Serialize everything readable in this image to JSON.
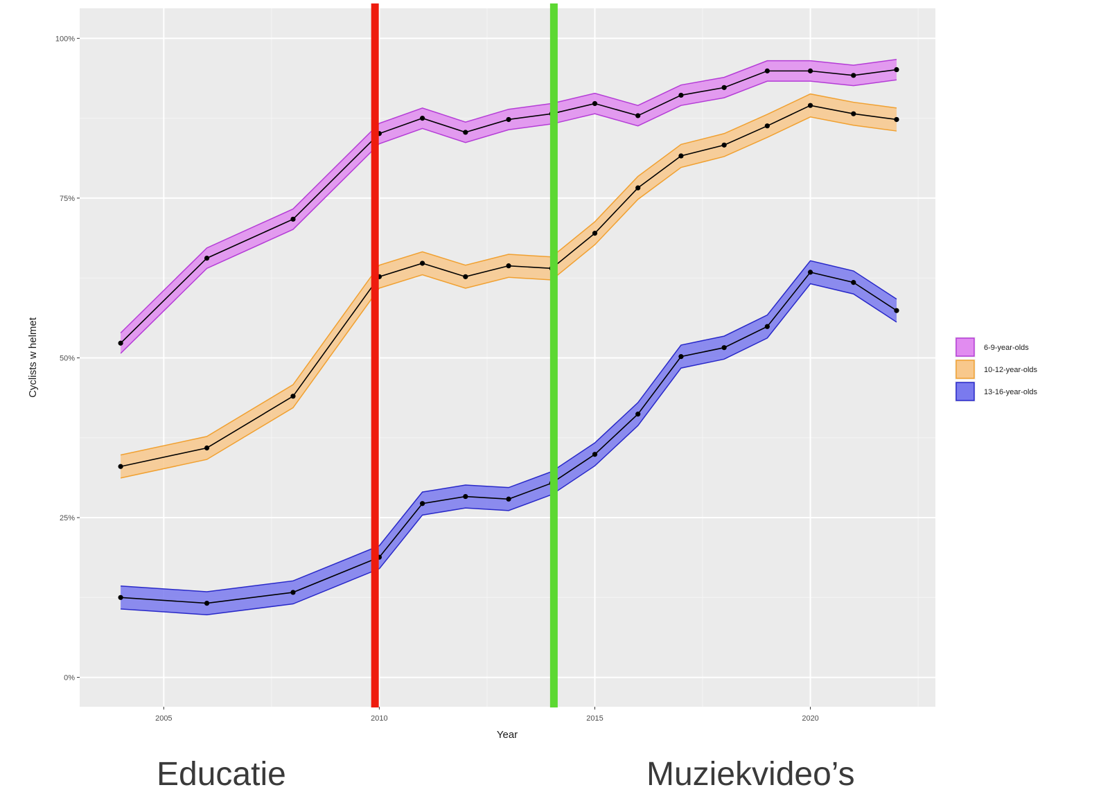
{
  "chart_data": {
    "type": "line",
    "title": "",
    "xlabel": "Year",
    "ylabel": "Cyclists w helmet",
    "x": [
      2004,
      2006,
      2008,
      2010,
      2011,
      2012,
      2013,
      2014,
      2015,
      2016,
      2017,
      2018,
      2019,
      2020,
      2021,
      2022
    ],
    "xlim": [
      2003.05,
      2022.9
    ],
    "ylim": [
      -4.6,
      104.7
    ],
    "x_ticks": [
      2005,
      2010,
      2015,
      2020
    ],
    "x_tick_labels": [
      "2005",
      "2010",
      "2015",
      "2020"
    ],
    "y_ticks": [
      0,
      25,
      50,
      75,
      100
    ],
    "y_tick_labels": [
      "0%",
      "25%",
      "50%",
      "75%",
      "100%"
    ],
    "grid": true,
    "legend_position": "right",
    "series": [
      {
        "name": "6-9-year-olds",
        "color": "#b43cd6",
        "fill": "#e18cf0",
        "values": [
          52.3,
          65.6,
          71.7,
          85.1,
          87.5,
          85.3,
          87.3,
          88.2,
          89.8,
          87.9,
          91.1,
          92.3,
          94.9,
          94.9,
          94.2,
          95.1
        ],
        "band": 1.6
      },
      {
        "name": "10-12-year-olds",
        "color": "#f0a030",
        "fill": "#f8c88c",
        "values": [
          33.0,
          35.9,
          44.0,
          62.7,
          64.8,
          62.7,
          64.4,
          64.0,
          69.5,
          76.6,
          81.6,
          83.3,
          86.3,
          89.5,
          88.2,
          87.3
        ],
        "band": 1.8
      },
      {
        "name": "13-16-year-olds",
        "color": "#2828c8",
        "fill": "#7a7aee",
        "values": [
          12.5,
          11.6,
          13.3,
          18.8,
          27.2,
          28.3,
          27.9,
          30.4,
          34.9,
          41.2,
          50.2,
          51.6,
          54.9,
          63.4,
          61.8,
          57.4
        ],
        "band": 1.8
      }
    ],
    "annotations": [
      {
        "type": "vline",
        "x": 2009.9,
        "color": "#ee1c0e"
      },
      {
        "type": "vline",
        "x": 2014.05,
        "color": "#5cd832"
      }
    ]
  },
  "captions": {
    "left": "Educatie",
    "right": "Muziekvideo’s"
  }
}
